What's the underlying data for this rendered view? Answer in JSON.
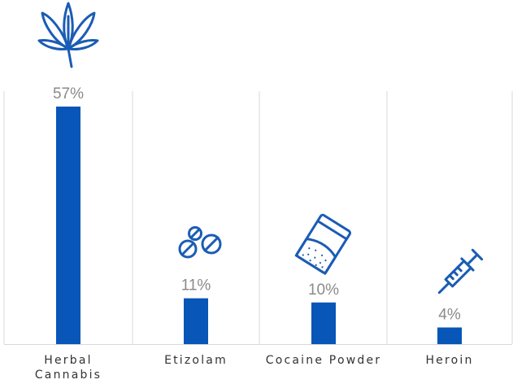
{
  "chart_data": {
    "type": "bar",
    "categories": [
      {
        "lines": [
          "Herbal",
          "Cannabis"
        ],
        "icon": "cannabis-leaf-icon"
      },
      {
        "lines": [
          "Etizolam"
        ],
        "icon": "pills-icon"
      },
      {
        "lines": [
          "Cocaine Powder"
        ],
        "icon": "powder-bag-icon"
      },
      {
        "lines": [
          "Heroin"
        ],
        "icon": "syringe-icon"
      }
    ],
    "values": [
      57,
      11,
      10,
      4
    ],
    "value_labels": [
      "57%",
      "11%",
      "10%",
      "4%"
    ],
    "unit": "%",
    "ylim": [
      0,
      57
    ],
    "grid": false,
    "colors": {
      "bar": "#0756b8",
      "icon": "#1a5cb4",
      "divider": "#d9d9d9",
      "value_text": "#8a8a8a",
      "category_text": "#333333"
    }
  }
}
